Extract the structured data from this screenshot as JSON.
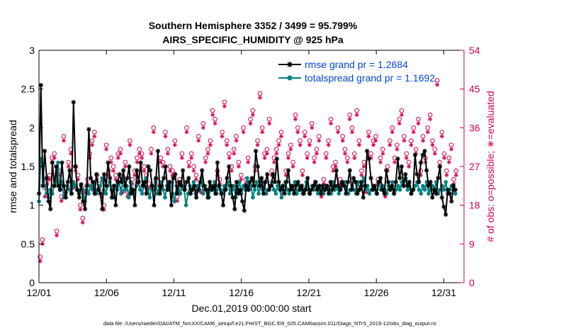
{
  "chart_data": {
    "type": "line",
    "title": "Southern Hemisphere 3352 / 3499 = 95.799%",
    "subtitle": "AIRS_SPECIFIC_HUMIDITY @ 925 hPa",
    "xlabel": "Dec.01,2019 00:00:00 start",
    "ylabel": "rmse and totalspread",
    "ylabel_right": "# of obs: o=possible; ∗=evaluated",
    "footnote": "data file: /Users/raeder/DAI/ATM_forcXX/CAM6_setup/f.e21.FHIST_BGC.f09_025.CAM6assim.011/Diags_NTrS_2019-12/obs_diag_output.nc",
    "xlim": [
      0,
      31.5
    ],
    "ylim": [
      0,
      3
    ],
    "ylim_right": [
      0,
      54
    ],
    "x_tick_labels": [
      "12/01",
      "12/06",
      "12/11",
      "12/16",
      "12/21",
      "12/26",
      "12/31"
    ],
    "x_tick_days": [
      0,
      5,
      10,
      15,
      20,
      25,
      30
    ],
    "y_ticks": [
      "0",
      "0.5",
      "1",
      "1.5",
      "2",
      "2.5",
      "3"
    ],
    "y_ticks_right": [
      "0",
      "9",
      "18",
      "27",
      "36",
      "45",
      "54"
    ],
    "colors": {
      "rmse": "#000000",
      "spread": "#008080",
      "obs": "#d6004f",
      "legend_text": "#0046d5"
    },
    "series": [
      {
        "name": "rmse grand pr = 1.2684",
        "marker": "asterisk",
        "values": [
          1.15,
          2.55,
          1.25,
          1.7,
          1.35,
          1.05,
          0.95,
          1.55,
          1.25,
          1.5,
          1.25,
          1.2,
          1.55,
          1.25,
          1.1,
          1.3,
          1.45,
          1.15,
          2.33,
          1.5,
          1.2,
          1.1,
          1.27,
          1.05,
          0.95,
          1.25,
          1.98,
          1.35,
          1.3,
          1.15,
          1.4,
          1.2,
          1.15,
          0.95,
          1.4,
          1.25,
          1.55,
          1.35,
          1.1,
          1.25,
          1.0,
          1.3,
          1.4,
          1.3,
          1.45,
          1.25,
          1.35,
          1.5,
          1.15,
          1.2,
          1.0,
          1.45,
          1.3,
          1.55,
          1.25,
          1.3,
          1.15,
          1.5,
          1.45,
          1.25,
          1.0,
          1.35,
          1.7,
          1.15,
          1.25,
          1.35,
          1.5,
          1.2,
          1.3,
          1.0,
          1.35,
          1.4,
          1.15,
          1.3,
          1.25,
          1.45,
          1.2,
          1.3,
          1.35,
          1.15,
          1.2,
          1.25,
          1.1,
          1.2,
          1.3,
          1.45,
          1.25,
          1.2,
          1.1,
          1.3,
          1.2,
          1.25,
          1.15,
          1.55,
          1.25,
          1.15,
          1.0,
          1.2,
          1.35,
          1.5,
          1.25,
          1.1,
          0.95,
          1.3,
          1.15,
          1.2,
          1.05,
          0.93,
          1.25,
          1.2,
          1.3,
          1.35,
          1.25,
          1.7,
          1.5,
          1.25,
          1.35,
          1.15,
          1.3,
          1.4,
          1.2,
          1.25,
          1.4,
          1.3,
          1.6,
          1.3,
          1.2,
          1.25,
          1.15,
          1.3,
          1.45,
          1.2,
          1.25,
          1.15,
          1.25,
          1.3,
          1.2,
          1.25,
          1.15,
          1.2,
          1.35,
          1.15,
          1.2,
          1.25,
          1.3,
          1.2,
          1.25,
          1.15,
          1.25,
          1.2,
          1.25,
          1.15,
          1.3,
          1.2,
          1.25,
          1.45,
          1.25,
          1.2,
          1.3,
          1.25,
          1.15,
          1.3,
          1.45,
          1.2,
          1.35,
          1.3,
          1.15,
          1.2,
          1.3,
          1.1,
          1.25,
          1.7,
          1.6,
          1.35,
          1.2,
          1.25,
          1.15,
          1.3,
          1.35,
          1.2,
          1.15,
          1.45,
          1.3,
          1.2,
          1.25,
          1.15,
          1.3,
          1.6,
          1.35,
          1.5,
          1.25,
          1.4,
          1.25,
          1.3,
          1.15,
          1.2,
          1.65,
          1.4,
          1.3,
          1.55,
          1.65,
          1.7,
          1.45,
          1.25,
          1.3,
          1.1,
          1.2,
          1.15,
          1.35,
          1.5,
          1.1,
          0.98,
          0.88,
          1.2,
          1.15,
          1.05,
          1.25,
          1.2
        ]
      },
      {
        "name": "totalspread grand pr = 1.1692",
        "marker": "dot",
        "values": [
          1.05,
          1.6,
          1.5,
          1.25,
          1.15,
          1.1,
          1.2,
          1.15,
          1.25,
          1.3,
          1.55,
          1.2,
          1.3,
          1.1,
          1.15,
          1.25,
          1.2,
          1.15,
          1.3,
          1.25,
          1.2,
          1.15,
          1.25,
          1.2,
          1.05,
          1.2,
          1.15,
          1.25,
          1.2,
          1.3,
          1.15,
          1.2,
          1.25,
          1.35,
          1.2,
          1.15,
          1.25,
          1.3,
          1.2,
          1.1,
          1.25,
          1.2,
          1.3,
          1.15,
          1.35,
          1.2,
          1.25,
          1.1,
          1.3,
          1.2,
          1.15,
          1.25,
          1.3,
          1.2,
          1.15,
          1.25,
          1.35,
          1.2,
          1.1,
          1.25,
          1.2,
          1.3,
          1.15,
          1.25,
          1.3,
          1.2,
          1.1,
          1.25,
          1.2,
          1.3,
          1.15,
          1.05,
          1.25,
          1.2,
          1.15,
          1.25,
          1.2,
          1.0,
          1.15,
          1.25,
          1.2,
          1.3,
          1.15,
          1.25,
          1.2,
          1.35,
          1.15,
          1.25,
          1.2,
          1.1,
          1.25,
          1.2,
          1.3,
          1.15,
          1.25,
          1.2,
          1.15,
          1.25,
          1.2,
          1.3,
          1.15,
          1.2,
          1.25,
          1.1,
          1.2,
          1.3,
          1.15,
          1.25,
          1.2,
          1.35,
          1.2,
          1.25,
          1.1,
          1.2,
          1.3,
          1.15,
          1.25,
          1.2,
          1.3,
          1.15,
          1.2,
          1.25,
          1.3,
          1.2,
          1.15,
          1.25,
          1.2,
          1.1,
          1.25,
          1.3,
          1.2,
          1.15,
          1.25,
          1.2,
          1.3,
          1.15,
          1.2,
          1.25,
          1.15,
          1.2,
          1.3,
          1.2,
          1.15,
          1.25,
          1.2,
          1.3,
          1.15,
          1.25,
          1.2,
          1.15,
          1.2,
          1.25,
          1.2,
          1.15,
          1.3,
          1.2,
          1.25,
          1.15,
          1.2,
          1.25,
          1.3,
          1.2,
          1.15,
          1.2,
          1.25,
          1.2,
          1.15,
          1.3,
          1.2,
          1.25,
          1.35,
          1.2,
          1.25,
          1.15,
          1.2,
          1.25,
          1.2,
          1.15,
          1.3,
          1.2,
          1.25,
          1.2,
          1.15,
          1.25,
          1.2,
          1.3,
          1.15,
          1.2,
          1.25,
          1.2,
          1.3,
          1.25,
          1.35,
          1.2,
          1.25,
          1.15,
          1.2,
          1.25,
          1.3,
          1.2,
          1.15,
          1.25,
          1.2,
          1.3,
          1.15,
          1.2,
          1.25,
          1.2,
          1.3,
          1.15,
          1.2,
          1.25,
          1.2,
          1.3,
          1.15,
          1.2,
          1.25,
          1.2,
          1.15
        ]
      }
    ],
    "obs_possible": [
      6,
      10,
      22,
      24,
      25,
      29,
      30,
      12,
      26,
      20,
      34,
      22,
      28,
      31,
      23,
      27,
      25,
      18,
      15,
      22,
      24,
      30,
      33,
      35,
      25,
      23,
      21,
      18,
      32,
      26,
      29,
      27,
      25,
      30,
      31,
      22,
      28,
      21,
      33,
      24,
      26,
      29,
      31,
      30,
      27,
      25,
      23,
      31,
      36,
      24,
      22,
      29,
      28,
      35,
      31,
      27,
      26,
      33,
      20,
      24,
      30,
      23,
      36,
      28,
      30,
      27,
      25,
      34,
      22,
      37,
      29,
      31,
      33,
      40,
      38,
      26,
      24,
      35,
      42,
      33,
      30,
      27,
      31,
      34,
      28,
      25,
      36,
      24,
      29,
      38,
      40,
      27,
      33,
      44,
      36,
      30,
      31,
      38,
      26,
      29,
      31,
      33,
      35,
      22,
      26,
      30,
      32,
      28,
      39,
      36,
      33,
      26,
      35,
      30,
      33,
      37,
      29,
      31,
      34,
      21,
      24,
      30,
      33,
      38,
      27,
      28,
      36,
      24,
      34,
      31,
      29,
      39,
      36,
      30,
      40,
      33,
      26,
      28,
      22,
      35,
      30,
      33,
      34,
      24,
      29,
      31,
      21,
      27,
      33,
      36,
      29,
      32,
      38,
      40,
      34,
      30,
      28,
      33,
      36,
      31,
      38,
      26,
      34,
      29,
      36,
      39,
      33,
      31,
      47,
      28,
      35,
      30,
      26,
      29,
      32,
      24,
      26
    ],
    "obs_evaluated": [
      5,
      9,
      20,
      23,
      24,
      28,
      29,
      11,
      25,
      19,
      33,
      21,
      27,
      30,
      22,
      26,
      24,
      17,
      14,
      21,
      23,
      29,
      32,
      34,
      24,
      22,
      20,
      17,
      31,
      25,
      28,
      26,
      24,
      29,
      30,
      21,
      27,
      20,
      32,
      23,
      25,
      28,
      30,
      29,
      26,
      24,
      22,
      30,
      35,
      23,
      21,
      28,
      27,
      34,
      30,
      26,
      25,
      32,
      19,
      23,
      29,
      22,
      35,
      27,
      29,
      26,
      24,
      33,
      21,
      36,
      28,
      30,
      32,
      39,
      37,
      25,
      23,
      34,
      41,
      32,
      29,
      26,
      30,
      33,
      27,
      24,
      35,
      23,
      28,
      37,
      39,
      26,
      32,
      43,
      35,
      29,
      30,
      37,
      25,
      28,
      30,
      32,
      34,
      21,
      25,
      29,
      31,
      27,
      38,
      35,
      32,
      25,
      34,
      29,
      32,
      36,
      28,
      30,
      33,
      20,
      23,
      29,
      32,
      37,
      26,
      27,
      35,
      23,
      33,
      30,
      28,
      38,
      35,
      29,
      39,
      32,
      25,
      27,
      21,
      34,
      29,
      32,
      33,
      23,
      28,
      30,
      20,
      26,
      32,
      35,
      28,
      31,
      37,
      39,
      33,
      29,
      27,
      32,
      35,
      30,
      37,
      25,
      33,
      28,
      35,
      38,
      32,
      30,
      46,
      27,
      34,
      29,
      25,
      28,
      31,
      23,
      25
    ]
  }
}
